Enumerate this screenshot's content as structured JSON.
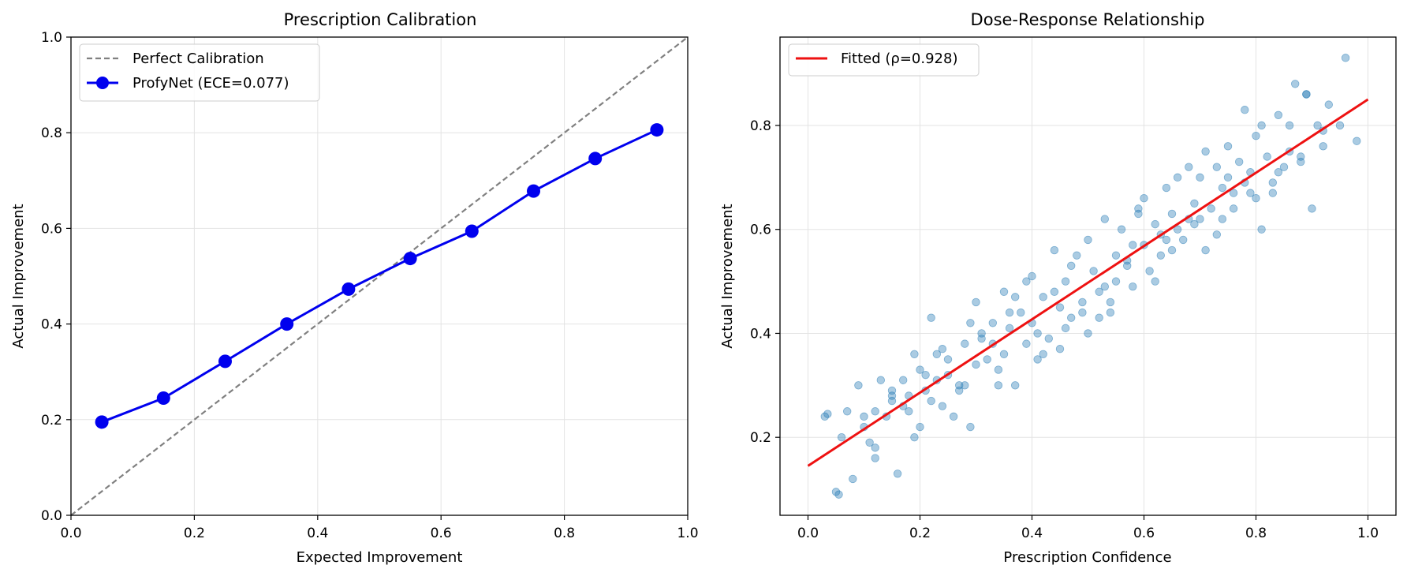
{
  "colors": {
    "calibration_line": "#0000ee",
    "perfect_line": "#808080",
    "scatter_points": "#1f77b4",
    "fit_line": "#ee1111"
  },
  "chart_data": [
    {
      "type": "line",
      "title": "Prescription Calibration",
      "xlabel": "Expected Improvement",
      "ylabel": "Actual Improvement",
      "xlim": [
        0.0,
        1.0
      ],
      "ylim": [
        0.0,
        1.0
      ],
      "xticks": [
        "0.0",
        "0.2",
        "0.4",
        "0.6",
        "0.8",
        "1.0"
      ],
      "yticks": [
        "0.0",
        "0.2",
        "0.4",
        "0.6",
        "0.8",
        "1.0"
      ],
      "grid": true,
      "legend_position": "top-left",
      "series": [
        {
          "name": "Perfect Calibration",
          "style": "dashed",
          "x": [
            0.0,
            1.0
          ],
          "y": [
            0.0,
            1.0
          ]
        },
        {
          "name": "ProfyNet (ECE=0.077)",
          "style": "solid-markers",
          "x": [
            0.05,
            0.15,
            0.25,
            0.35,
            0.45,
            0.55,
            0.65,
            0.75,
            0.85,
            0.95
          ],
          "y": [
            0.195,
            0.245,
            0.322,
            0.4,
            0.473,
            0.537,
            0.594,
            0.678,
            0.746,
            0.806
          ]
        }
      ]
    },
    {
      "type": "scatter",
      "title": "Dose-Response Relationship",
      "xlabel": "Prescription Confidence",
      "ylabel": "Actual Improvement",
      "xlim": [
        -0.05,
        1.05
      ],
      "ylim": [
        0.05,
        0.97
      ],
      "xticks": [
        "0.0",
        "0.2",
        "0.4",
        "0.6",
        "0.8",
        "1.0"
      ],
      "yticks": [
        "0.2",
        "0.4",
        "0.6",
        "0.8"
      ],
      "grid": true,
      "legend_position": "top-left",
      "fit_line": {
        "name": "Fitted (ρ=0.928)",
        "x": [
          0.0,
          1.0
        ],
        "y": [
          0.145,
          0.85
        ]
      },
      "points": {
        "x": [
          0.03,
          0.035,
          0.05,
          0.055,
          0.06,
          0.07,
          0.08,
          0.09,
          0.1,
          0.11,
          0.12,
          0.12,
          0.13,
          0.14,
          0.15,
          0.15,
          0.16,
          0.17,
          0.17,
          0.18,
          0.19,
          0.2,
          0.2,
          0.21,
          0.22,
          0.22,
          0.23,
          0.24,
          0.25,
          0.25,
          0.26,
          0.27,
          0.28,
          0.29,
          0.3,
          0.3,
          0.31,
          0.32,
          0.33,
          0.34,
          0.35,
          0.35,
          0.36,
          0.37,
          0.38,
          0.39,
          0.4,
          0.4,
          0.41,
          0.42,
          0.43,
          0.44,
          0.45,
          0.45,
          0.46,
          0.47,
          0.48,
          0.49,
          0.5,
          0.5,
          0.51,
          0.52,
          0.53,
          0.54,
          0.55,
          0.55,
          0.56,
          0.57,
          0.58,
          0.59,
          0.6,
          0.6,
          0.61,
          0.62,
          0.63,
          0.64,
          0.65,
          0.65,
          0.66,
          0.67,
          0.68,
          0.69,
          0.7,
          0.7,
          0.71,
          0.72,
          0.73,
          0.74,
          0.75,
          0.75,
          0.76,
          0.77,
          0.78,
          0.79,
          0.8,
          0.8,
          0.81,
          0.82,
          0.83,
          0.84,
          0.85,
          0.86,
          0.87,
          0.88,
          0.89,
          0.9,
          0.91,
          0.92,
          0.93,
          0.95,
          0.96,
          0.98,
          0.12,
          0.18,
          0.24,
          0.28,
          0.33,
          0.37,
          0.42,
          0.46,
          0.52,
          0.57,
          0.62,
          0.66,
          0.71,
          0.76,
          0.81,
          0.86,
          0.15,
          0.21,
          0.27,
          0.31,
          0.36,
          0.41,
          0.47,
          0.53,
          0.58,
          0.63,
          0.68,
          0.73,
          0.78,
          0.83,
          0.88,
          0.92,
          0.1,
          0.23,
          0.34,
          0.44,
          0.54,
          0.64,
          0.74,
          0.84,
          0.19,
          0.29,
          0.39,
          0.49,
          0.59,
          0.69,
          0.79,
          0.89
        ],
        "y": [
          0.24,
          0.245,
          0.095,
          0.09,
          0.2,
          0.25,
          0.12,
          0.3,
          0.22,
          0.19,
          0.25,
          0.18,
          0.31,
          0.24,
          0.28,
          0.29,
          0.13,
          0.26,
          0.31,
          0.25,
          0.36,
          0.22,
          0.33,
          0.29,
          0.43,
          0.27,
          0.31,
          0.37,
          0.35,
          0.32,
          0.24,
          0.3,
          0.38,
          0.22,
          0.46,
          0.34,
          0.4,
          0.35,
          0.42,
          0.3,
          0.48,
          0.36,
          0.41,
          0.3,
          0.44,
          0.38,
          0.51,
          0.42,
          0.35,
          0.47,
          0.39,
          0.56,
          0.45,
          0.37,
          0.5,
          0.43,
          0.55,
          0.46,
          0.58,
          0.4,
          0.52,
          0.48,
          0.62,
          0.44,
          0.55,
          0.5,
          0.6,
          0.53,
          0.49,
          0.63,
          0.57,
          0.66,
          0.52,
          0.61,
          0.59,
          0.68,
          0.56,
          0.63,
          0.7,
          0.58,
          0.72,
          0.65,
          0.62,
          0.7,
          0.75,
          0.64,
          0.72,
          0.68,
          0.76,
          0.7,
          0.67,
          0.73,
          0.83,
          0.71,
          0.78,
          0.66,
          0.8,
          0.74,
          0.69,
          0.82,
          0.72,
          0.8,
          0.88,
          0.74,
          0.86,
          0.64,
          0.8,
          0.76,
          0.84,
          0.8,
          0.93,
          0.77,
          0.16,
          0.28,
          0.26,
          0.3,
          0.38,
          0.47,
          0.36,
          0.41,
          0.43,
          0.54,
          0.5,
          0.6,
          0.56,
          0.64,
          0.6,
          0.75,
          0.27,
          0.32,
          0.29,
          0.39,
          0.44,
          0.4,
          0.53,
          0.49,
          0.57,
          0.55,
          0.62,
          0.59,
          0.69,
          0.67,
          0.73,
          0.79,
          0.24,
          0.36,
          0.33,
          0.48,
          0.46,
          0.58,
          0.62,
          0.71,
          0.2,
          0.42,
          0.5,
          0.44,
          0.64,
          0.61,
          0.67,
          0.86
        ]
      }
    }
  ]
}
